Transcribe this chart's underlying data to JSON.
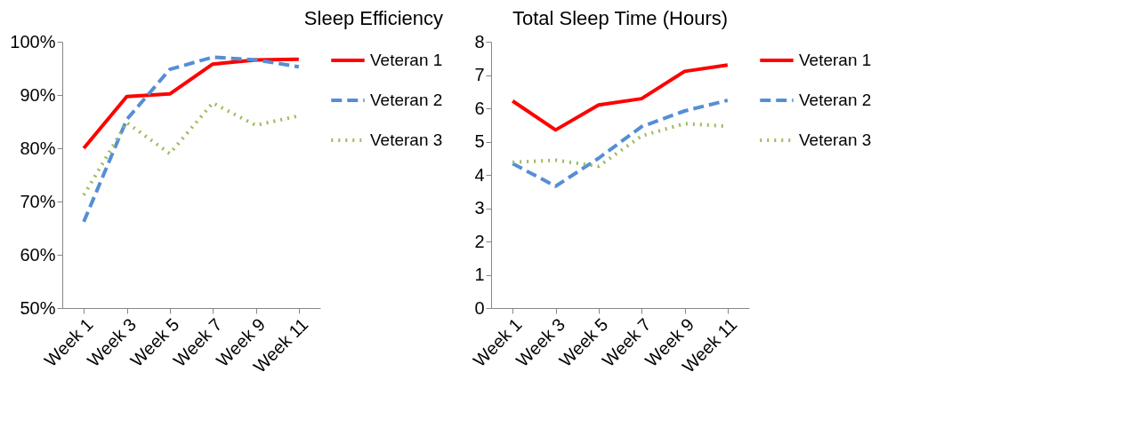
{
  "chart_data": [
    {
      "type": "line",
      "title": "Sleep Efficiency",
      "categories": [
        "Week 1",
        "Week 3",
        "Week 5",
        "Week 7",
        "Week 9",
        "Week 11"
      ],
      "legend": "right",
      "grid": false,
      "marker": "none",
      "ylim": [
        50,
        100
      ],
      "yticks": [
        {
          "value": 50,
          "label": "50%"
        },
        {
          "value": 60,
          "label": "60%"
        },
        {
          "value": 70,
          "label": "70%"
        },
        {
          "value": 80,
          "label": "80%"
        },
        {
          "value": 90,
          "label": "90%"
        },
        {
          "value": 100,
          "label": "100%"
        }
      ],
      "series": [
        {
          "name": "Veteran 1",
          "color": "#ff0000",
          "line_style": "solid",
          "values": [
            80.0,
            89.7,
            90.2,
            95.8,
            96.6,
            96.7
          ]
        },
        {
          "name": "Veteran 2",
          "color": "#558ed5",
          "line_style": "dashed",
          "values": [
            66.2,
            85.4,
            94.8,
            97.1,
            96.6,
            95.3
          ]
        },
        {
          "name": "Veteran 3",
          "color": "#9bbb59",
          "line_style": "dotted",
          "values": [
            71.2,
            84.8,
            79.0,
            88.5,
            84.3,
            86.1
          ]
        }
      ]
    },
    {
      "type": "line",
      "title": "Total Sleep Time (Hours)",
      "categories": [
        "Week 1",
        "Week 3",
        "Week 5",
        "Week 7",
        "Week 9",
        "Week 11"
      ],
      "legend": "right",
      "grid": false,
      "marker": "none",
      "ylim": [
        0,
        8
      ],
      "yticks": [
        0,
        1,
        2,
        3,
        4,
        5,
        6,
        7,
        8
      ],
      "series": [
        {
          "name": "Veteran 1",
          "color": "#ff0000",
          "line_style": "solid",
          "values": [
            6.22,
            5.35,
            6.1,
            6.29,
            7.11,
            7.3
          ]
        },
        {
          "name": "Veteran 2",
          "color": "#558ed5",
          "line_style": "dashed",
          "values": [
            4.34,
            3.66,
            4.5,
            5.45,
            5.92,
            6.24
          ]
        },
        {
          "name": "Veteran 3",
          "color": "#9bbb59",
          "line_style": "dotted",
          "values": [
            4.38,
            4.44,
            4.26,
            5.17,
            5.54,
            5.46
          ]
        }
      ]
    }
  ]
}
